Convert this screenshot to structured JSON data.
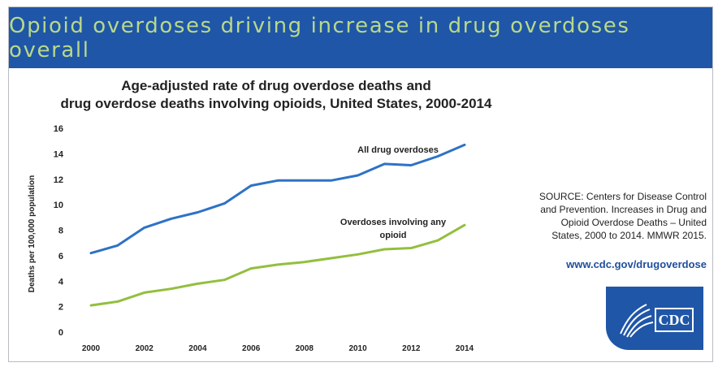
{
  "banner": {
    "title": "Opioid overdoses driving increase in drug overdoses overall"
  },
  "chart_data": {
    "type": "line",
    "title": "Age-adjusted rate of drug overdose deaths and drug overdose deaths involving opioids, United States, 2000-2014",
    "title_lines": [
      "Age-adjusted rate of drug overdose deaths and",
      "drug overdose deaths involving opioids, United States, 2000-2014"
    ],
    "xlabel": "",
    "ylabel": "Deaths per 100,000 population",
    "x": [
      2000,
      2001,
      2002,
      2003,
      2004,
      2005,
      2006,
      2007,
      2008,
      2009,
      2010,
      2011,
      2012,
      2013,
      2014
    ],
    "xticks": [
      "2000",
      "2002",
      "2004",
      "2006",
      "2008",
      "2010",
      "2012",
      "2014"
    ],
    "yticks": [
      "0",
      "2",
      "4",
      "6",
      "8",
      "10",
      "12",
      "14",
      "16"
    ],
    "ylim": [
      0,
      16
    ],
    "grid": false,
    "series": [
      {
        "name": "All drug overdoses",
        "color": "#2e72c6",
        "values": [
          6.2,
          6.8,
          8.2,
          8.9,
          9.4,
          10.1,
          11.5,
          11.9,
          11.9,
          11.9,
          12.3,
          13.2,
          13.1,
          13.8,
          14.7
        ]
      },
      {
        "name": "Overdoses involving any opioid",
        "label_lines": [
          "Overdoses involving any",
          "opioid"
        ],
        "color": "#93bf3e",
        "values": [
          2.1,
          2.4,
          3.1,
          3.4,
          3.8,
          4.1,
          5.0,
          5.3,
          5.5,
          5.8,
          6.1,
          6.5,
          6.6,
          7.2,
          8.4
        ]
      }
    ]
  },
  "source": {
    "text": "SOURCE: Centers for Disease Control and Prevention. Increases in Drug and Opioid Overdose Deaths – United States, 2000 to 2014. MMWR 2015.",
    "lines": [
      "SOURCE: Centers for Disease Control",
      "and Prevention. Increases in Drug and",
      "Opioid Overdose Deaths – United",
      "States, 2000 to 2014. MMWR 2015."
    ],
    "url": "www.cdc.gov/drugoverdose"
  },
  "logo": {
    "text": "CDC",
    "color": "#1f56a8"
  }
}
